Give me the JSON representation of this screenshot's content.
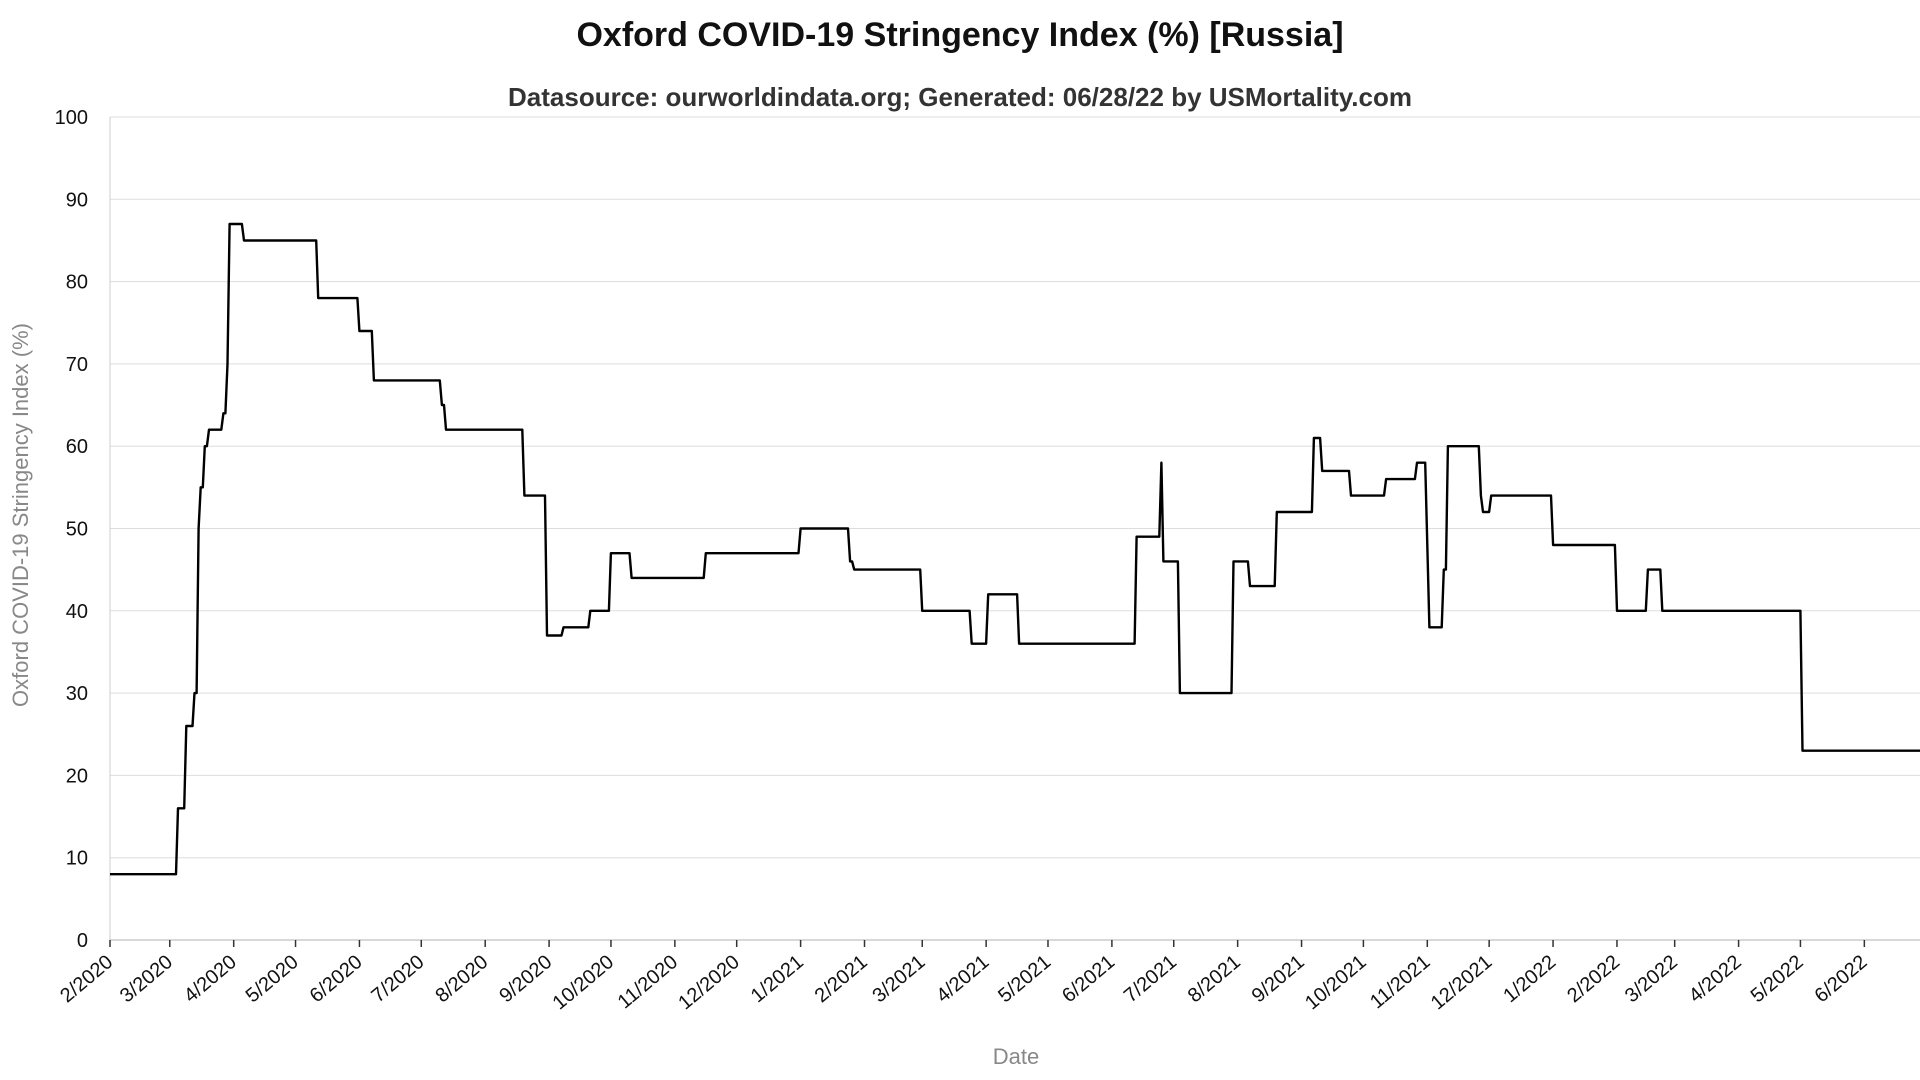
{
  "chart_data": {
    "type": "line",
    "title": "Oxford COVID-19 Stringency Index (%) [Russia]",
    "subtitle": "Datasource: ourworldindata.org; Generated: 06/28/22 by USMortality.com",
    "xlabel": "Date",
    "ylabel": "Oxford COVID-19 Stringency Index (%)",
    "ylim": [
      0,
      100
    ],
    "yticks": [
      0,
      10,
      20,
      30,
      40,
      50,
      60,
      70,
      80,
      90,
      100
    ],
    "xlim": [
      "2020-02-01",
      "2022-06-28"
    ],
    "xticks": [
      {
        "date": "2020-02-01",
        "label": "2/2020"
      },
      {
        "date": "2020-03-01",
        "label": "3/2020"
      },
      {
        "date": "2020-04-01",
        "label": "4/2020"
      },
      {
        "date": "2020-05-01",
        "label": "5/2020"
      },
      {
        "date": "2020-06-01",
        "label": "6/2020"
      },
      {
        "date": "2020-07-01",
        "label": "7/2020"
      },
      {
        "date": "2020-08-01",
        "label": "8/2020"
      },
      {
        "date": "2020-09-01",
        "label": "9/2020"
      },
      {
        "date": "2020-10-01",
        "label": "10/2020"
      },
      {
        "date": "2020-11-01",
        "label": "11/2020"
      },
      {
        "date": "2020-12-01",
        "label": "12/2020"
      },
      {
        "date": "2021-01-01",
        "label": "1/2021"
      },
      {
        "date": "2021-02-01",
        "label": "2/2021"
      },
      {
        "date": "2021-03-01",
        "label": "3/2021"
      },
      {
        "date": "2021-04-01",
        "label": "4/2021"
      },
      {
        "date": "2021-05-01",
        "label": "5/2021"
      },
      {
        "date": "2021-06-01",
        "label": "6/2021"
      },
      {
        "date": "2021-07-01",
        "label": "7/2021"
      },
      {
        "date": "2021-08-01",
        "label": "8/2021"
      },
      {
        "date": "2021-09-01",
        "label": "9/2021"
      },
      {
        "date": "2021-10-01",
        "label": "10/2021"
      },
      {
        "date": "2021-11-01",
        "label": "11/2021"
      },
      {
        "date": "2021-12-01",
        "label": "12/2021"
      },
      {
        "date": "2022-01-01",
        "label": "1/2022"
      },
      {
        "date": "2022-02-01",
        "label": "2/2022"
      },
      {
        "date": "2022-03-01",
        "label": "3/2022"
      },
      {
        "date": "2022-04-01",
        "label": "4/2022"
      },
      {
        "date": "2022-05-01",
        "label": "5/2022"
      },
      {
        "date": "2022-06-01",
        "label": "6/2022"
      }
    ],
    "grid": true,
    "line_color": "#000000",
    "series": [
      {
        "points": [
          [
            "2020-02-01",
            8
          ],
          [
            "2020-03-04",
            8
          ],
          [
            "2020-03-05",
            16
          ],
          [
            "2020-03-08",
            16
          ],
          [
            "2020-03-09",
            26
          ],
          [
            "2020-03-12",
            26
          ],
          [
            "2020-03-13",
            30
          ],
          [
            "2020-03-14",
            30
          ],
          [
            "2020-03-15",
            50
          ],
          [
            "2020-03-16",
            55
          ],
          [
            "2020-03-17",
            55
          ],
          [
            "2020-03-18",
            60
          ],
          [
            "2020-03-19",
            60
          ],
          [
            "2020-03-20",
            62
          ],
          [
            "2020-03-26",
            62
          ],
          [
            "2020-03-27",
            64
          ],
          [
            "2020-03-28",
            64
          ],
          [
            "2020-03-29",
            70
          ],
          [
            "2020-03-30",
            87
          ],
          [
            "2020-04-05",
            87
          ],
          [
            "2020-04-06",
            85
          ],
          [
            "2020-05-11",
            85
          ],
          [
            "2020-05-12",
            78
          ],
          [
            "2020-05-31",
            78
          ],
          [
            "2020-06-01",
            74
          ],
          [
            "2020-06-07",
            74
          ],
          [
            "2020-06-08",
            68
          ],
          [
            "2020-07-10",
            68
          ],
          [
            "2020-07-11",
            65
          ],
          [
            "2020-07-12",
            65
          ],
          [
            "2020-07-13",
            62
          ],
          [
            "2020-08-19",
            62
          ],
          [
            "2020-08-20",
            54
          ],
          [
            "2020-08-30",
            54
          ],
          [
            "2020-08-31",
            37
          ],
          [
            "2020-09-07",
            37
          ],
          [
            "2020-09-08",
            38
          ],
          [
            "2020-09-20",
            38
          ],
          [
            "2020-09-21",
            40
          ],
          [
            "2020-09-30",
            40
          ],
          [
            "2020-10-01",
            47
          ],
          [
            "2020-10-10",
            47
          ],
          [
            "2020-10-11",
            44
          ],
          [
            "2020-11-15",
            44
          ],
          [
            "2020-11-16",
            47
          ],
          [
            "2020-12-31",
            47
          ],
          [
            "2021-01-01",
            50
          ],
          [
            "2021-01-24",
            50
          ],
          [
            "2021-01-25",
            46
          ],
          [
            "2021-01-26",
            46
          ],
          [
            "2021-01-27",
            45
          ],
          [
            "2021-02-28",
            45
          ],
          [
            "2021-03-01",
            40
          ],
          [
            "2021-03-24",
            40
          ],
          [
            "2021-03-25",
            36
          ],
          [
            "2021-04-01",
            36
          ],
          [
            "2021-04-02",
            42
          ],
          [
            "2021-04-16",
            42
          ],
          [
            "2021-04-17",
            36
          ],
          [
            "2021-06-12",
            36
          ],
          [
            "2021-06-13",
            49
          ],
          [
            "2021-06-24",
            49
          ],
          [
            "2021-06-25",
            58
          ],
          [
            "2021-06-26",
            46
          ],
          [
            "2021-07-03",
            46
          ],
          [
            "2021-07-04",
            30
          ],
          [
            "2021-07-29",
            30
          ],
          [
            "2021-07-30",
            46
          ],
          [
            "2021-08-06",
            46
          ],
          [
            "2021-08-07",
            43
          ],
          [
            "2021-08-19",
            43
          ],
          [
            "2021-08-20",
            52
          ],
          [
            "2021-09-06",
            52
          ],
          [
            "2021-09-07",
            61
          ],
          [
            "2021-09-10",
            61
          ],
          [
            "2021-09-11",
            57
          ],
          [
            "2021-09-24",
            57
          ],
          [
            "2021-09-25",
            54
          ],
          [
            "2021-10-11",
            54
          ],
          [
            "2021-10-12",
            56
          ],
          [
            "2021-10-26",
            56
          ],
          [
            "2021-10-27",
            58
          ],
          [
            "2021-10-31",
            58
          ],
          [
            "2021-11-02",
            38
          ],
          [
            "2021-11-08",
            38
          ],
          [
            "2021-11-09",
            45
          ],
          [
            "2021-11-10",
            45
          ],
          [
            "2021-11-11",
            60
          ],
          [
            "2021-11-26",
            60
          ],
          [
            "2021-11-27",
            54
          ],
          [
            "2021-11-28",
            52
          ],
          [
            "2021-12-01",
            52
          ],
          [
            "2021-12-02",
            54
          ],
          [
            "2021-12-31",
            54
          ],
          [
            "2022-01-01",
            48
          ],
          [
            "2022-01-31",
            48
          ],
          [
            "2022-02-01",
            40
          ],
          [
            "2022-02-15",
            40
          ],
          [
            "2022-02-16",
            45
          ],
          [
            "2022-02-22",
            45
          ],
          [
            "2022-02-23",
            40
          ],
          [
            "2022-05-01",
            40
          ],
          [
            "2022-05-02",
            23
          ],
          [
            "2022-06-28",
            23
          ]
        ]
      }
    ]
  }
}
